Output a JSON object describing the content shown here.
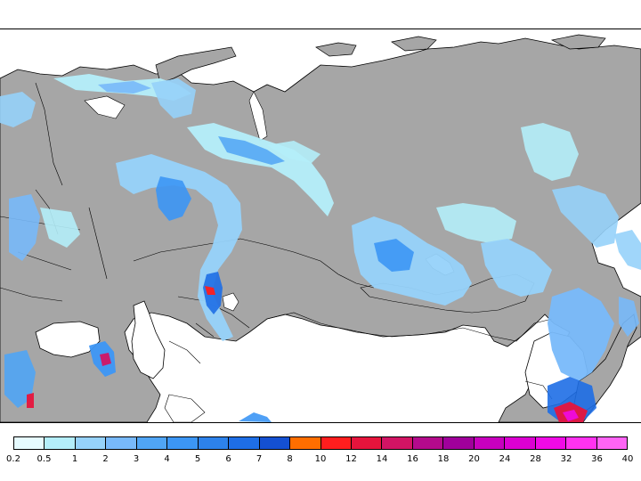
{
  "map": {
    "land_color": "#a6a6a6",
    "sea_color": "#ffffff",
    "border_color": "#000000"
  },
  "legend": {
    "ticks": [
      "0.2",
      "0.5",
      "1",
      "2",
      "3",
      "4",
      "5",
      "6",
      "7",
      "8",
      "10",
      "12",
      "14",
      "16",
      "18",
      "20",
      "24",
      "28",
      "32",
      "36",
      "40"
    ],
    "colors": [
      "#e6fbff",
      "#b4eefa",
      "#96d2fa",
      "#78b9fa",
      "#50a5f5",
      "#3c96f5",
      "#2d82eb",
      "#1e6ee6",
      "#1450d2",
      "#ff6e00",
      "#ff1e1e",
      "#e6143c",
      "#d21464",
      "#b40a8c",
      "#a0009b",
      "#c800be",
      "#dc00d2",
      "#f00ae6",
      "#ff32f0",
      "#ff64f5"
    ]
  }
}
